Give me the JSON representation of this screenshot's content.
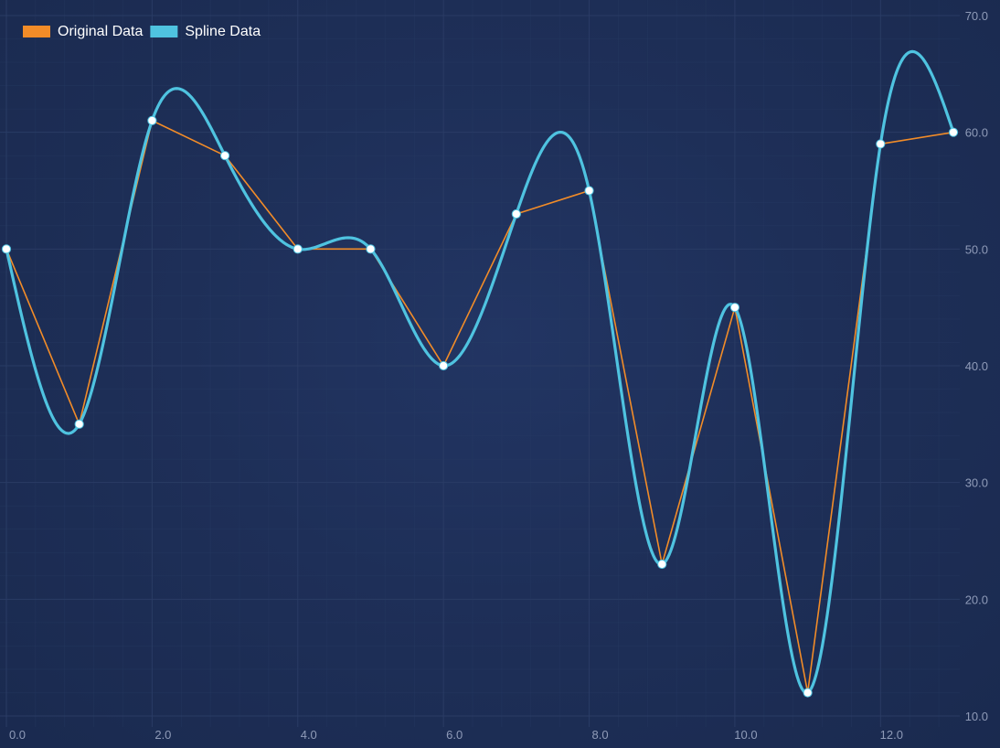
{
  "chart_data": {
    "type": "line",
    "title": "",
    "xlabel": "",
    "ylabel": "",
    "xlim": [
      -0.15,
      13.0
    ],
    "ylim": [
      10,
      70
    ],
    "x_ticks": [
      0,
      2,
      4,
      6,
      8,
      10,
      12
    ],
    "x_tick_labels": [
      "0.0",
      "2.0",
      "4.0",
      "6.0",
      "8.0",
      "10.0",
      "12.0"
    ],
    "y_ticks": [
      10,
      20,
      30,
      40,
      50,
      60,
      70
    ],
    "y_tick_labels": [
      "10.0",
      "20.0",
      "30.0",
      "40.0",
      "50.0",
      "60.0",
      "70.0"
    ],
    "y_axis_position": "right",
    "grid": true,
    "legend_position": "top-left",
    "series": [
      {
        "name": "Original Data",
        "color": "#f28c28",
        "style": "line-with-markers",
        "x": [
          0,
          1,
          2,
          3,
          4,
          5,
          6,
          7,
          8,
          9,
          10,
          11,
          12,
          13
        ],
        "y": [
          50,
          35,
          61,
          58,
          50,
          50,
          40,
          53,
          55,
          23,
          45,
          12,
          59,
          60
        ]
      },
      {
        "name": "Spline Data",
        "color": "#4fc3e0",
        "style": "spline",
        "x": [
          0,
          1,
          2,
          3,
          4,
          5,
          6,
          7,
          8,
          9,
          10,
          11,
          12,
          13
        ],
        "y": [
          50,
          35,
          61,
          58,
          50,
          50,
          40,
          53,
          55,
          23,
          45,
          12,
          59,
          60
        ]
      }
    ],
    "colors": {
      "background": "#1e2f58",
      "grid": "#2b3d66",
      "tick_text": "#8f9bb8",
      "marker_fill": "#ffffff"
    }
  }
}
